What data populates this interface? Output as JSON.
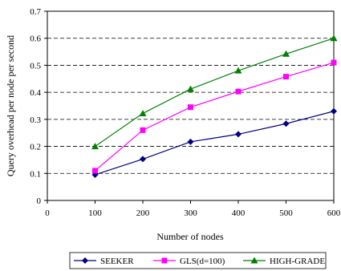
{
  "chart_data": {
    "type": "line",
    "title": "",
    "xlabel": "Number of nodes",
    "ylabel": "Query overhead per node per second",
    "xlim": [
      0,
      600
    ],
    "ylim": [
      0,
      0.7
    ],
    "x_ticks": [
      "0",
      "100",
      "200",
      "300",
      "400",
      "500",
      "600"
    ],
    "y_ticks": [
      "0",
      "0.1",
      "0.2",
      "0.3",
      "0.4",
      "0.5",
      "0.6",
      "0.7"
    ],
    "x": [
      100,
      200,
      300,
      400,
      500,
      600
    ],
    "grid": "horizontal-dashed",
    "legend_position": "bottom",
    "series": [
      {
        "name": "SEEKER",
        "color": "#000080",
        "marker": "diamond",
        "values": [
          0.095,
          0.153,
          0.217,
          0.245,
          0.284,
          0.33
        ]
      },
      {
        "name": "GLS(d=100)",
        "color": "#ff00ff",
        "marker": "square",
        "values": [
          0.11,
          0.26,
          0.345,
          0.403,
          0.458,
          0.51
        ]
      },
      {
        "name": "HIGH-GRADE",
        "color": "#008000",
        "marker": "triangle",
        "values": [
          0.2,
          0.322,
          0.412,
          0.48,
          0.542,
          0.6
        ]
      }
    ]
  }
}
